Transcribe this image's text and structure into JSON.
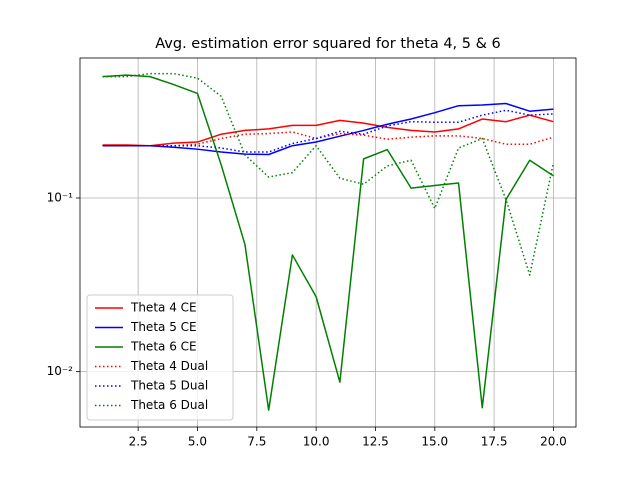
{
  "chart_data": {
    "type": "line",
    "title": "Avg. estimation error squared for theta 4, 5 & 6",
    "x": [
      1,
      2,
      3,
      4,
      5,
      6,
      7,
      8,
      9,
      10,
      11,
      12,
      13,
      14,
      15,
      16,
      17,
      18,
      19,
      20
    ],
    "series": [
      {
        "name": "Theta 4 CE",
        "color": "#ff0000",
        "linestyle": "solid",
        "values": [
          0.202,
          0.202,
          0.2,
          0.207,
          0.21,
          0.233,
          0.245,
          0.25,
          0.262,
          0.262,
          0.28,
          0.27,
          0.255,
          0.245,
          0.24,
          0.25,
          0.285,
          0.275,
          0.3,
          0.275
        ]
      },
      {
        "name": "Theta 5 CE",
        "color": "#0000ff",
        "linestyle": "solid",
        "values": [
          0.2,
          0.2,
          0.2,
          0.196,
          0.191,
          0.184,
          0.179,
          0.178,
          0.2,
          0.21,
          0.227,
          0.245,
          0.266,
          0.285,
          0.31,
          0.34,
          0.343,
          0.35,
          0.316,
          0.325
        ]
      },
      {
        "name": "Theta 6 CE",
        "color": "#008000",
        "linestyle": "solid",
        "values": [
          0.5,
          0.51,
          0.5,
          0.45,
          0.4,
          0.155,
          0.054,
          0.006,
          0.047,
          0.027,
          0.0087,
          0.168,
          0.19,
          0.114,
          0.118,
          0.122,
          0.0062,
          0.098,
          0.165,
          0.134
        ]
      },
      {
        "name": "Theta 4 Dual",
        "color": "#ff0000",
        "linestyle": "dotted",
        "values": [
          0.2,
          0.2,
          0.2,
          0.2,
          0.204,
          0.22,
          0.233,
          0.235,
          0.24,
          0.22,
          0.235,
          0.23,
          0.218,
          0.224,
          0.228,
          0.228,
          0.22,
          0.204,
          0.204,
          0.224
        ]
      },
      {
        "name": "Theta 5 Dual",
        "color": "#0000ff",
        "linestyle": "dotted",
        "values": [
          0.2,
          0.2,
          0.2,
          0.2,
          0.2,
          0.194,
          0.184,
          0.184,
          0.206,
          0.22,
          0.242,
          0.233,
          0.26,
          0.275,
          0.273,
          0.273,
          0.3,
          0.32,
          0.3,
          0.305
        ]
      },
      {
        "name": "Theta 6 Dual",
        "color": "#008000",
        "linestyle": "dotted",
        "values": [
          0.5,
          0.5,
          0.52,
          0.52,
          0.49,
          0.385,
          0.177,
          0.132,
          0.14,
          0.2,
          0.13,
          0.12,
          0.153,
          0.165,
          0.087,
          0.194,
          0.22,
          0.098,
          0.036,
          0.16
        ]
      }
    ],
    "xlim": [
      0.05,
      20.95
    ],
    "xticks": [
      {
        "value": 2.5,
        "label": "2.5"
      },
      {
        "value": 5,
        "label": "5.0"
      },
      {
        "value": 7.5,
        "label": "7.5"
      },
      {
        "value": 10,
        "label": "10.0"
      },
      {
        "value": 12.5,
        "label": "12.5"
      },
      {
        "value": 15,
        "label": "15.0"
      },
      {
        "value": 17.5,
        "label": "17.5"
      },
      {
        "value": 20,
        "label": "20.0"
      }
    ],
    "ylim": [
      0.0048,
      0.64
    ],
    "yticks": [
      {
        "value": 0.01,
        "label": "10⁻²"
      },
      {
        "value": 0.1,
        "label": "10⁻¹"
      }
    ],
    "log_y": true,
    "grid": true,
    "legend": "lower left"
  }
}
